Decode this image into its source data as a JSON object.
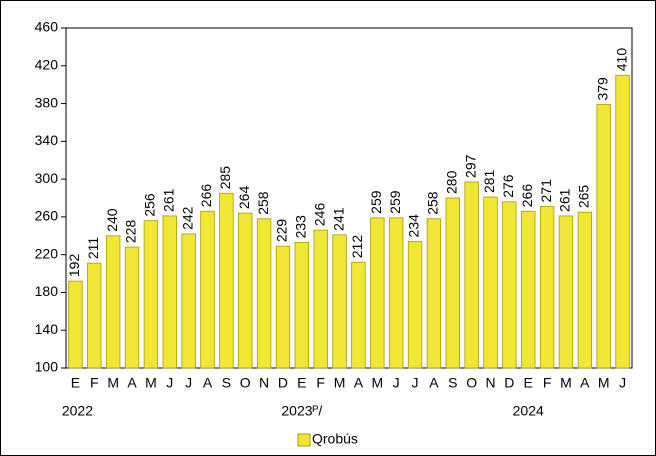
{
  "chart_data": {
    "type": "bar",
    "categories": [
      "E",
      "F",
      "M",
      "A",
      "M",
      "J",
      "J",
      "A",
      "S",
      "O",
      "N",
      "D",
      "E",
      "F",
      "M",
      "A",
      "M",
      "J",
      "J",
      "A",
      "S",
      "O",
      "N",
      "D",
      "E",
      "F",
      "M",
      "A",
      "M",
      "J"
    ],
    "years": [
      "2022",
      "2023ᴾ/",
      "2024"
    ],
    "series": [
      {
        "name": "Qrobús",
        "color": "#f2e634",
        "values": [
          192,
          211,
          240,
          228,
          256,
          261,
          242,
          266,
          285,
          264,
          258,
          229,
          233,
          246,
          241,
          212,
          259,
          259,
          234,
          258,
          280,
          297,
          281,
          276,
          266,
          271,
          261,
          265,
          379,
          410
        ]
      }
    ],
    "ylim": [
      100,
      460
    ],
    "yticks": [
      100,
      140,
      180,
      220,
      260,
      300,
      340,
      380,
      420,
      460
    ],
    "legend": "bottom"
  }
}
